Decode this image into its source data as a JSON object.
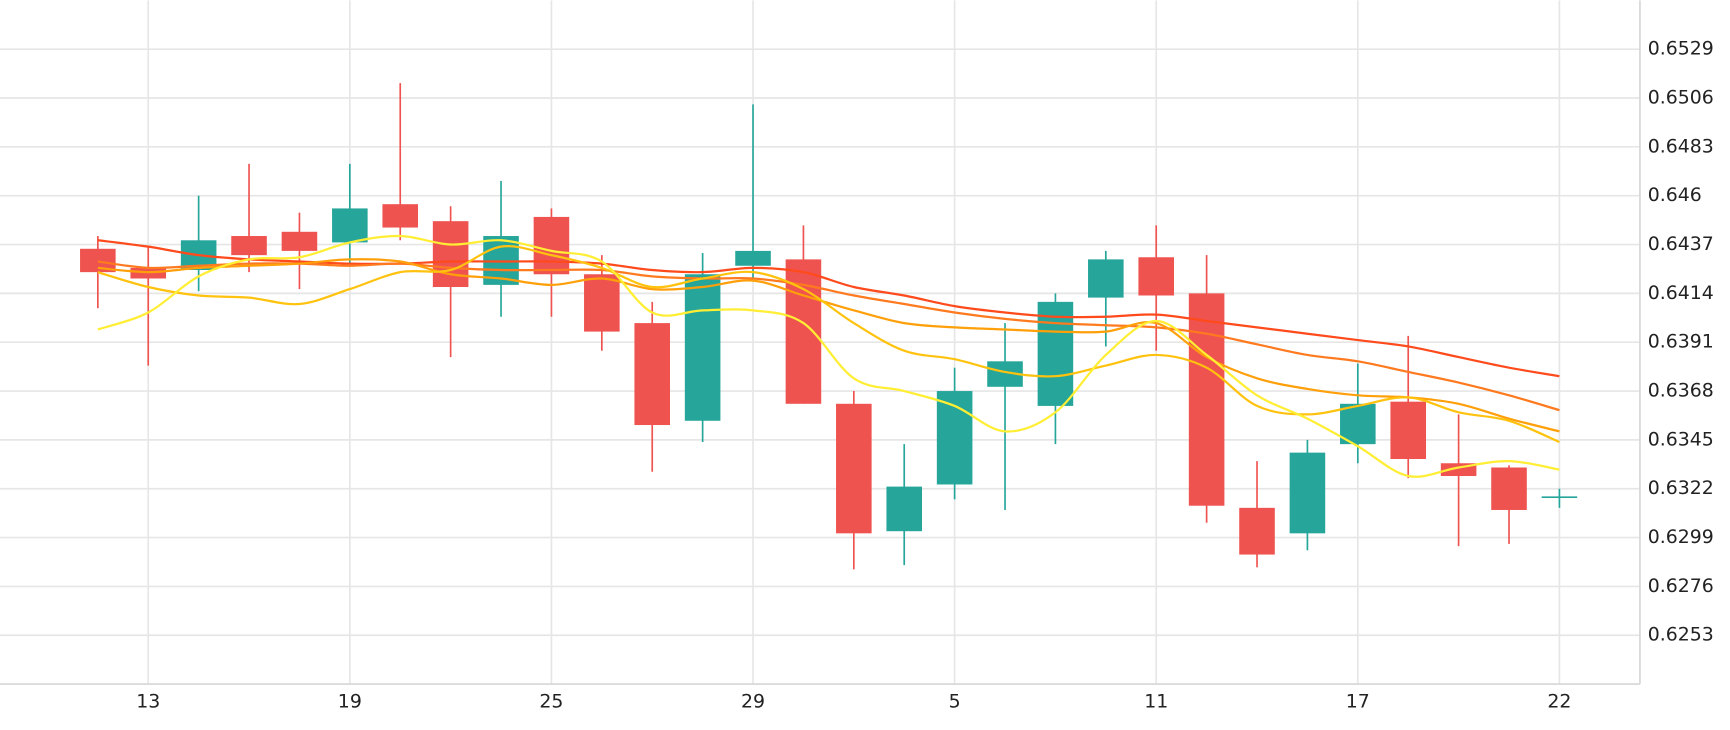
{
  "chart_data": {
    "type": "candlestick",
    "categories": [
      null,
      "13",
      null,
      null,
      null,
      "19",
      null,
      null,
      null,
      "25",
      null,
      null,
      null,
      "29",
      null,
      null,
      null,
      "5",
      null,
      null,
      null,
      "11",
      null,
      null,
      null,
      "17",
      null,
      null,
      null,
      "22"
    ],
    "open": [
      0.6435,
      0.6426,
      0.6425,
      0.6441,
      0.6443,
      0.6438,
      0.6456,
      0.6448,
      0.6418,
      0.645,
      0.6423,
      0.64,
      0.6354,
      0.6427,
      0.643,
      0.6362,
      0.6302,
      0.6324,
      0.637,
      0.6361,
      0.6412,
      0.6431,
      0.6414,
      0.6313,
      0.6301,
      0.6343,
      0.6363,
      0.6334,
      0.6332,
      0.6318
    ],
    "high": [
      0.6441,
      0.6436,
      0.646,
      0.6475,
      0.6452,
      0.6475,
      0.6513,
      0.6455,
      0.6467,
      0.6454,
      0.6432,
      0.641,
      0.6433,
      0.6503,
      0.6446,
      0.6368,
      0.6343,
      0.6379,
      0.64,
      0.6414,
      0.6434,
      0.6446,
      0.6432,
      0.6335,
      0.6345,
      0.6381,
      0.6394,
      0.6357,
      0.6333,
      0.6322
    ],
    "low": [
      0.6407,
      0.638,
      0.6415,
      0.6424,
      0.6416,
      0.6428,
      0.6439,
      0.6384,
      0.6403,
      0.6403,
      0.6387,
      0.633,
      0.6344,
      0.6421,
      0.6362,
      0.6284,
      0.6286,
      0.6317,
      0.6312,
      0.6343,
      0.6389,
      0.6387,
      0.6306,
      0.6285,
      0.6293,
      0.6334,
      0.6327,
      0.6295,
      0.6296,
      0.6313
    ],
    "close": [
      0.6424,
      0.6421,
      0.6439,
      0.6432,
      0.6434,
      0.6454,
      0.6445,
      0.6417,
      0.6441,
      0.6423,
      0.6396,
      0.6352,
      0.6423,
      0.6434,
      0.6362,
      0.6301,
      0.6323,
      0.6368,
      0.6382,
      0.641,
      0.643,
      0.6413,
      0.6314,
      0.6291,
      0.6339,
      0.6362,
      0.6336,
      0.6328,
      0.6312,
      0.6318
    ],
    "up_color": "#26a69a",
    "down_color": "#ef5350",
    "lines": [
      {
        "color": "#ff4a1c",
        "values": [
          0.6439,
          0.6436,
          0.6432,
          0.643,
          0.6429,
          0.6428,
          0.6428,
          0.6429,
          0.6429,
          0.6429,
          0.6428,
          0.6425,
          0.6424,
          0.6426,
          0.6424,
          0.6417,
          0.6413,
          0.6408,
          0.6405,
          0.6403,
          0.6403,
          0.6404,
          0.6401,
          0.6398,
          0.6395,
          0.6392,
          0.6389,
          0.6384,
          0.6379,
          0.6375
        ]
      },
      {
        "color": "#ff7a1f",
        "values": [
          0.6429,
          0.6426,
          0.6427,
          0.6428,
          0.6428,
          0.6427,
          0.6428,
          0.6426,
          0.6425,
          0.6425,
          0.6425,
          0.6422,
          0.6421,
          0.6421,
          0.6418,
          0.6413,
          0.6409,
          0.6405,
          0.6402,
          0.64,
          0.6399,
          0.6398,
          0.6395,
          0.639,
          0.6385,
          0.6382,
          0.6377,
          0.6372,
          0.6366,
          0.6359
        ]
      },
      {
        "color": "#ff9f0a",
        "values": [
          0.6426,
          0.6424,
          0.6426,
          0.6427,
          0.6428,
          0.643,
          0.6429,
          0.6423,
          0.6421,
          0.6418,
          0.6421,
          0.6416,
          0.6417,
          0.642,
          0.6413,
          0.6406,
          0.64,
          0.6398,
          0.6397,
          0.6396,
          0.6396,
          0.64,
          0.6384,
          0.6374,
          0.6369,
          0.6366,
          0.6365,
          0.6362,
          0.6355,
          0.6349
        ]
      },
      {
        "color": "#ffc20e",
        "values": [
          0.6424,
          0.6417,
          0.6413,
          0.6412,
          0.6409,
          0.6416,
          0.6424,
          0.6425,
          0.6436,
          0.6432,
          0.6426,
          0.6417,
          0.6421,
          0.6424,
          0.6416,
          0.64,
          0.6387,
          0.6383,
          0.6377,
          0.6375,
          0.638,
          0.6385,
          0.6379,
          0.6361,
          0.6357,
          0.6361,
          0.6365,
          0.6358,
          0.6354,
          0.6344
        ]
      },
      {
        "color": "#ffee33",
        "values": [
          0.6397,
          0.6405,
          0.6422,
          0.643,
          0.6431,
          0.6438,
          0.6441,
          0.6437,
          0.6439,
          0.6434,
          0.6429,
          0.6405,
          0.6406,
          0.6406,
          0.64,
          0.6374,
          0.6368,
          0.6361,
          0.6349,
          0.6358,
          0.6385,
          0.6401,
          0.6385,
          0.6366,
          0.6355,
          0.6342,
          0.6328,
          0.6332,
          0.6335,
          0.6331
        ]
      }
    ],
    "ylim": [
      0.623,
      0.6552
    ],
    "yticks": [
      0.6253,
      0.6276,
      0.6299,
      0.6322,
      0.6345,
      0.6368,
      0.6391,
      0.6414,
      0.6437,
      0.646,
      0.6483,
      0.6506,
      0.6529
    ],
    "grid": true
  }
}
